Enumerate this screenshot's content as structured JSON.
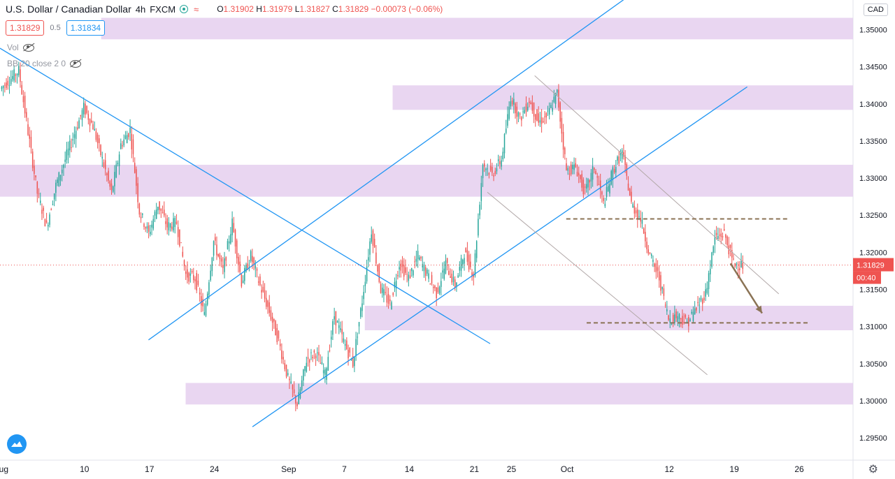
{
  "header": {
    "title": "U.S. Dollar / Canadian Dollar",
    "interval": "4h",
    "exchange": "FXCM",
    "wave_icon": "≈",
    "open_label": "O",
    "open": "1.31902",
    "high_label": "H",
    "high": "1.31979",
    "low_label": "L",
    "low": "1.31827",
    "close_label": "C",
    "close": "1.31829",
    "change": "−0.00073 (−0.06%)"
  },
  "trade": {
    "sell_price": "1.31829",
    "spread": "0.5",
    "buy_price": "1.31834"
  },
  "indicators": [
    {
      "label": "Vol"
    },
    {
      "label": "BB 20 close 2 0"
    }
  ],
  "currency_button": "CAD",
  "last_price": {
    "value": "1.31829",
    "countdown": "00:40"
  },
  "colors": {
    "up": "#26a69a",
    "down": "#ef5350",
    "zone": "#e5cfee",
    "trendline": "#2196f3",
    "channel": "#b2a8a8",
    "dashed": "#8b7355",
    "arrow": "#8b7355",
    "axis_text": "#131722"
  },
  "chart_data": {
    "type": "candlestick",
    "instrument": "USDCAD",
    "y_min": 1.292,
    "y_max": 1.354,
    "price_ticks": [
      "1.35000",
      "1.34500",
      "1.34000",
      "1.33500",
      "1.33000",
      "1.32500",
      "1.32000",
      "1.31500",
      "1.31000",
      "1.30500",
      "1.30000",
      "1.29500"
    ],
    "price_tick_values": [
      1.35,
      1.345,
      1.34,
      1.335,
      1.33,
      1.325,
      1.32,
      1.315,
      1.31,
      1.305,
      1.3,
      1.295
    ],
    "date_ticks": [
      {
        "label": "Aug",
        "day": 0
      },
      {
        "label": "10",
        "day": 9
      },
      {
        "label": "17",
        "day": 16
      },
      {
        "label": "24",
        "day": 23
      },
      {
        "label": "Sep",
        "day": 31
      },
      {
        "label": "7",
        "day": 37
      },
      {
        "label": "14",
        "day": 44
      },
      {
        "label": "21",
        "day": 51
      },
      {
        "label": "25",
        "day": 55
      },
      {
        "label": "Oct",
        "day": 61
      },
      {
        "label": "12",
        "day": 72
      },
      {
        "label": "19",
        "day": 79
      },
      {
        "label": "26",
        "day": 86
      }
    ],
    "x_day_min": -0.1,
    "x_day_max": 91.8,
    "price_path": [
      [
        0,
        1.342
      ],
      [
        2,
        1.3445
      ],
      [
        4,
        1.328
      ],
      [
        5,
        1.3235
      ],
      [
        6,
        1.329
      ],
      [
        8,
        1.336
      ],
      [
        9,
        1.3395
      ],
      [
        10,
        1.337
      ],
      [
        12,
        1.328
      ],
      [
        13,
        1.3345
      ],
      [
        14,
        1.3365
      ],
      [
        15,
        1.3255
      ],
      [
        16,
        1.3225
      ],
      [
        17,
        1.3265
      ],
      [
        18,
        1.3235
      ],
      [
        19,
        1.324
      ],
      [
        20,
        1.317
      ],
      [
        21,
        1.3165
      ],
      [
        22,
        1.3115
      ],
      [
        23,
        1.3215
      ],
      [
        24,
        1.3175
      ],
      [
        25,
        1.324
      ],
      [
        26,
        1.316
      ],
      [
        27,
        1.3195
      ],
      [
        28,
        1.3155
      ],
      [
        29,
        1.312
      ],
      [
        30,
        1.308
      ],
      [
        31,
        1.303
      ],
      [
        32,
        1.2995
      ],
      [
        33,
        1.3055
      ],
      [
        34,
        1.3065
      ],
      [
        35,
        1.3035
      ],
      [
        36,
        1.3115
      ],
      [
        37,
        1.308
      ],
      [
        38,
        1.305
      ],
      [
        39,
        1.3135
      ],
      [
        40,
        1.323
      ],
      [
        41,
        1.315
      ],
      [
        42,
        1.313
      ],
      [
        43,
        1.3185
      ],
      [
        44,
        1.3165
      ],
      [
        45,
        1.3195
      ],
      [
        46,
        1.317
      ],
      [
        47,
        1.3145
      ],
      [
        48,
        1.3185
      ],
      [
        49,
        1.3155
      ],
      [
        50,
        1.32
      ],
      [
        51,
        1.317
      ],
      [
        52,
        1.332
      ],
      [
        53,
        1.3305
      ],
      [
        54,
        1.3325
      ],
      [
        55,
        1.341
      ],
      [
        56,
        1.338
      ],
      [
        57,
        1.3405
      ],
      [
        58,
        1.3375
      ],
      [
        59,
        1.3385
      ],
      [
        60,
        1.3415
      ],
      [
        61,
        1.331
      ],
      [
        62,
        1.3315
      ],
      [
        63,
        1.328
      ],
      [
        64,
        1.3315
      ],
      [
        65,
        1.3265
      ],
      [
        66,
        1.331
      ],
      [
        67,
        1.3335
      ],
      [
        68,
        1.3265
      ],
      [
        69,
        1.3245
      ],
      [
        70,
        1.3195
      ],
      [
        71,
        1.3165
      ],
      [
        72,
        1.311
      ],
      [
        73,
        1.3115
      ],
      [
        74,
        1.3105
      ],
      [
        75,
        1.3125
      ],
      [
        76,
        1.3145
      ],
      [
        77,
        1.322
      ],
      [
        78,
        1.3225
      ],
      [
        79,
        1.3185
      ],
      [
        80,
        1.3183
      ]
    ],
    "zones": [
      {
        "x0_day": 10.8,
        "x1_day": 91.8,
        "y0": 1.3487,
        "y1": 1.3516
      },
      {
        "x0_day": 42.2,
        "x1_day": 91.8,
        "y0": 1.3392,
        "y1": 1.3425
      },
      {
        "x0_day": -0.1,
        "x1_day": 91.8,
        "y0": 1.3275,
        "y1": 1.3318
      },
      {
        "x0_day": 39.2,
        "x1_day": 91.8,
        "y0": 1.3095,
        "y1": 1.3128
      },
      {
        "x0_day": 19.9,
        "x1_day": 91.8,
        "y0": 1.2995,
        "y1": 1.3024
      }
    ],
    "trendlines": [
      {
        "style": "blue",
        "points": [
          [
            -0.1,
            1.3475
          ],
          [
            52.7,
            1.3077
          ]
        ]
      },
      {
        "style": "blue",
        "points": [
          [
            15.9,
            1.3082
          ],
          [
            67.6,
            1.3545
          ]
        ]
      },
      {
        "style": "blue",
        "points": [
          [
            27.1,
            1.2965
          ],
          [
            80.4,
            1.3423
          ]
        ]
      },
      {
        "style": "channel",
        "points": [
          [
            57.5,
            1.3438
          ],
          [
            83.8,
            1.3144
          ]
        ]
      },
      {
        "style": "channel",
        "points": [
          [
            52.4,
            1.3281
          ],
          [
            76.1,
            1.3035
          ]
        ]
      },
      {
        "style": "dashed",
        "points": [
          [
            60.9,
            1.3245
          ],
          [
            84.8,
            1.3245
          ]
        ]
      },
      {
        "style": "dashed",
        "points": [
          [
            63.1,
            1.3105
          ],
          [
            87.1,
            1.3105
          ]
        ]
      }
    ],
    "arrow": {
      "from": [
        78.6,
        1.3185
      ],
      "to": [
        82.0,
        1.3118
      ]
    },
    "last_price_line": 1.31829
  }
}
